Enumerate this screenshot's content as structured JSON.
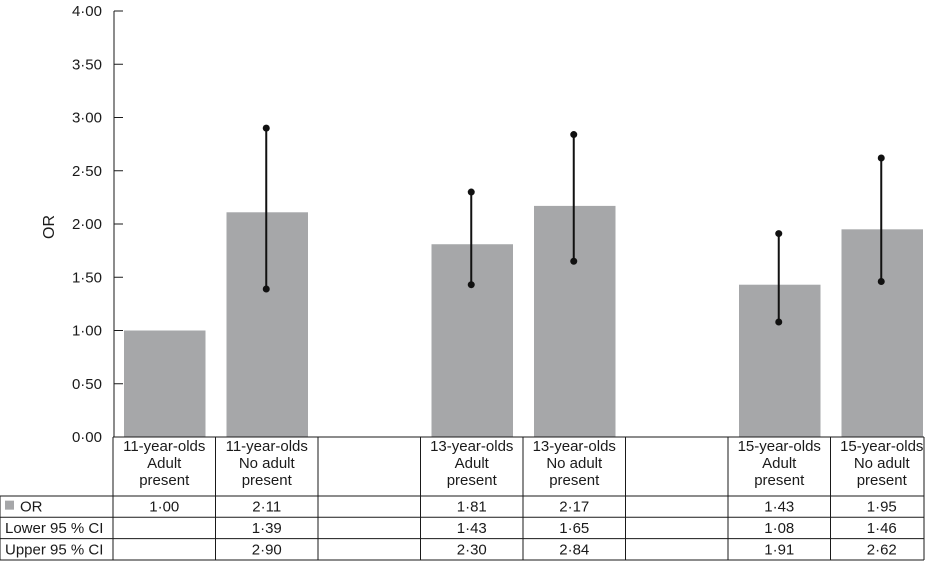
{
  "chart_data": {
    "type": "bar",
    "ylabel": "OR",
    "ylim": [
      0,
      4
    ],
    "yticks": [
      "0·00",
      "0·50",
      "1·00",
      "1·50",
      "2·00",
      "2·50",
      "3·00",
      "3·50",
      "4·00"
    ],
    "ytick_values": [
      0,
      0.5,
      1,
      1.5,
      2,
      2.5,
      3,
      3.5,
      4
    ],
    "grid": false,
    "bar_color": "#a6a7a9",
    "categories": [
      {
        "label": [
          "11-year-olds",
          "Adult",
          "present"
        ]
      },
      {
        "label": [
          "11-year-olds",
          "No adult",
          "present"
        ]
      },
      null,
      {
        "label": [
          "13-year-olds",
          "Adult",
          "present"
        ]
      },
      {
        "label": [
          "13-year-olds",
          "No adult",
          "present"
        ]
      },
      null,
      {
        "label": [
          "15-year-olds",
          "Adult",
          "present"
        ]
      },
      {
        "label": [
          "15-year-olds",
          "No adult",
          "present"
        ]
      }
    ],
    "series": [
      {
        "name": "OR",
        "values": [
          1.0,
          2.11,
          null,
          1.81,
          2.17,
          null,
          1.43,
          1.95
        ]
      }
    ],
    "error_bars": {
      "lower": [
        null,
        1.39,
        null,
        1.43,
        1.65,
        null,
        1.08,
        1.46
      ],
      "upper": [
        null,
        2.9,
        null,
        2.3,
        2.84,
        null,
        1.91,
        2.62
      ]
    },
    "table": {
      "rows": [
        {
          "label": "OR",
          "has_swatch": true,
          "cells": [
            "1·00",
            "2·11",
            "",
            "1·81",
            "2·17",
            "",
            "1·43",
            "1·95"
          ]
        },
        {
          "label": "Lower 95 % CI",
          "has_swatch": false,
          "cells": [
            "",
            "1·39",
            "",
            "1·43",
            "1·65",
            "",
            "1·08",
            "1·46"
          ]
        },
        {
          "label": "Upper 95 % CI",
          "has_swatch": false,
          "cells": [
            "",
            "2·90",
            "",
            "2·30",
            "2·84",
            "",
            "1·91",
            "2·62"
          ]
        }
      ]
    }
  }
}
